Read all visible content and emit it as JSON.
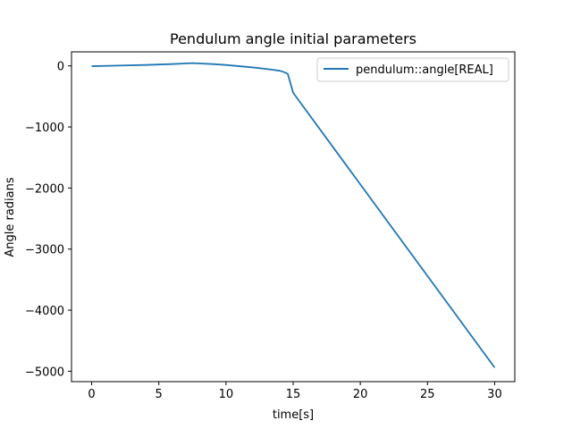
{
  "chart_data": {
    "type": "line",
    "title": "Pendulum angle initial parameters",
    "xlabel": "time[s]",
    "ylabel": "Angle radians",
    "xlim": [
      -1.5,
      31.5
    ],
    "ylim": [
      -5170,
      230
    ],
    "xticks": [
      0,
      5,
      10,
      15,
      20,
      25,
      30
    ],
    "xtick_labels": [
      "0",
      "5",
      "10",
      "15",
      "20",
      "25",
      "30"
    ],
    "yticks": [
      0,
      -1000,
      -2000,
      -3000,
      -4000,
      -5000
    ],
    "ytick_labels": [
      "0",
      "−1000",
      "−2000",
      "−3000",
      "−4000",
      "−5000"
    ],
    "grid": false,
    "legend_position": "top-right",
    "series": [
      {
        "name": "pendulum::angle[REAL]",
        "color": "#1f77b4",
        "x": [
          0,
          2,
          4,
          6,
          7.5,
          9,
          10,
          11,
          12,
          13,
          13.5,
          14,
          14.3,
          14.6,
          15,
          20,
          25,
          30
        ],
        "y": [
          -5,
          5,
          15,
          30,
          45,
          30,
          15,
          -5,
          -25,
          -50,
          -65,
          -80,
          -100,
          -130,
          -440,
          -1940,
          -3440,
          -4940
        ]
      }
    ]
  }
}
